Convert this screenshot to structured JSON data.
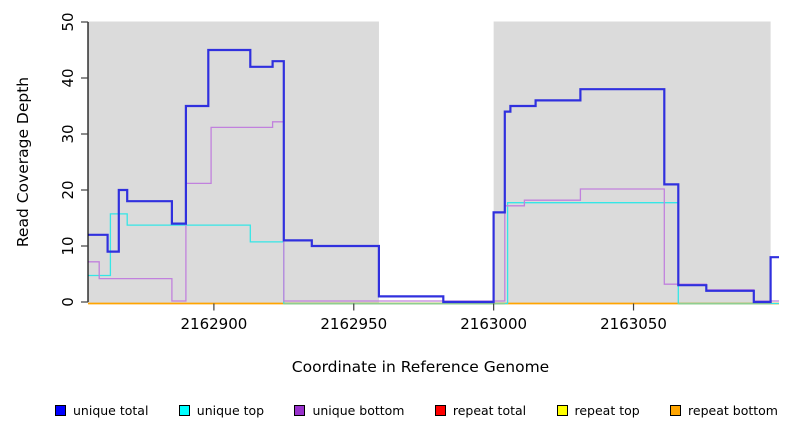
{
  "chart_data": {
    "type": "line",
    "subtype": "step-coverage",
    "title": "",
    "xlabel": "Coordinate in Reference Genome",
    "ylabel": "Read Coverage Depth",
    "xlim": [
      2162855,
      2163102
    ],
    "ylim": [
      0,
      50
    ],
    "x_ticks": [
      2162900,
      2162950,
      2163000,
      2163050
    ],
    "x_tick_labels": [
      "2162900",
      "2162950",
      "2163000",
      "2163050"
    ],
    "y_ticks": [
      0,
      10,
      20,
      30,
      40,
      50
    ],
    "y_tick_labels": [
      "0",
      "10",
      "20",
      "30",
      "40",
      "50"
    ],
    "grid": false,
    "panel_color": "#dbdbdb",
    "panels": [
      {
        "from": 2162855,
        "to": 2162959
      },
      {
        "from": 2163000,
        "to": 2163099
      }
    ],
    "series": [
      {
        "name": "unique total",
        "swatch_color": "#0000ff",
        "line_color": "#3030de",
        "line_width": 2.2,
        "steps": [
          [
            2162855,
            12
          ],
          [
            2162862,
            9
          ],
          [
            2162866,
            20
          ],
          [
            2162869,
            18
          ],
          [
            2162885,
            14
          ],
          [
            2162890,
            35
          ],
          [
            2162898,
            45
          ],
          [
            2162913,
            42
          ],
          [
            2162921,
            43
          ],
          [
            2162925,
            11
          ],
          [
            2162935,
            10
          ],
          [
            2162959,
            1
          ],
          [
            2162982,
            0
          ],
          [
            2163000,
            16
          ],
          [
            2163004,
            34
          ],
          [
            2163006,
            35
          ],
          [
            2163015,
            36
          ],
          [
            2163031,
            38
          ],
          [
            2163061,
            21
          ],
          [
            2163066,
            3
          ],
          [
            2163076,
            2
          ],
          [
            2163093,
            0
          ],
          [
            2163099,
            8
          ]
        ],
        "end": 2163102
      },
      {
        "name": "unique top",
        "swatch_color": "#00ffff",
        "line_color": "#35e6e6",
        "line_width": 1.3,
        "steps": [
          [
            2162855,
            5
          ],
          [
            2162863,
            16
          ],
          [
            2162869,
            14
          ],
          [
            2162913,
            11
          ],
          [
            2162925,
            0
          ],
          [
            2163005,
            18
          ],
          [
            2163066,
            0
          ]
        ],
        "end": 2163102
      },
      {
        "name": "unique bottom",
        "swatch_color": "#9932cc",
        "line_color": "#c181dd",
        "line_width": 1.3,
        "steps": [
          [
            2162855,
            7
          ],
          [
            2162859,
            4
          ],
          [
            2162885,
            0
          ],
          [
            2162890,
            21
          ],
          [
            2162899,
            31
          ],
          [
            2162921,
            32
          ],
          [
            2162925,
            0
          ],
          [
            2163004,
            17
          ],
          [
            2163011,
            18
          ],
          [
            2163031,
            20
          ],
          [
            2163061,
            3
          ],
          [
            2163076,
            2
          ],
          [
            2163093,
            0
          ]
        ],
        "end": 2163102
      },
      {
        "name": "repeat total",
        "swatch_color": "#ff0000",
        "line_color": "#ff0000",
        "line_width": 1.3,
        "steps": [
          [
            2162855,
            0
          ]
        ],
        "end": 2163102
      },
      {
        "name": "repeat top",
        "swatch_color": "#ffff00",
        "line_color": "#ffff00",
        "line_width": 1.3,
        "steps": [
          [
            2162855,
            0
          ]
        ],
        "end": 2163102
      },
      {
        "name": "repeat bottom",
        "swatch_color": "#ffa500",
        "line_color": "#ffa500",
        "line_width": 1.6,
        "steps": [
          [
            2162855,
            0
          ]
        ],
        "end": 2163102
      }
    ],
    "zero_overlap_segments": {
      "color": "#8fce8f",
      "note": "light-green blend where unique-top sits at zero on the repeat-bottom line",
      "ranges": [
        {
          "from": 2162925,
          "to": 2163004
        },
        {
          "from": 2163066,
          "to": 2163099
        }
      ]
    },
    "legend": [
      {
        "label": "unique total",
        "color": "#0000ff"
      },
      {
        "label": "unique top",
        "color": "#00ffff"
      },
      {
        "label": "unique bottom",
        "color": "#9932cc"
      },
      {
        "label": "repeat total",
        "color": "#ff0000"
      },
      {
        "label": "repeat top",
        "color": "#ffff00"
      },
      {
        "label": "repeat bottom",
        "color": "#ffa500"
      }
    ],
    "legend_position": "bottom"
  }
}
